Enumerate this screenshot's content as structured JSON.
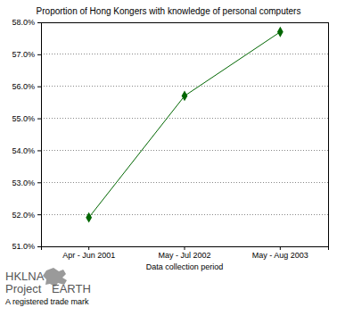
{
  "chart_data": {
    "type": "line",
    "title": "Proportion of Hong Kongers with knowledge of personal computers",
    "x_label": "Data collection period",
    "categories": [
      "Apr - Jun 2001",
      "May - Jul 2002",
      "May - Aug 2003"
    ],
    "values": [
      51.9,
      55.7,
      57.7
    ],
    "color": "#006600",
    "marker": "diamond",
    "line_style": "solid",
    "ylim": [
      51,
      58
    ],
    "yticks": [
      {
        "value": 51,
        "label": "51.0%"
      },
      {
        "value": 52,
        "label": "52.0%"
      },
      {
        "value": 53,
        "label": "53.0%"
      },
      {
        "value": 54,
        "label": "54.0%"
      },
      {
        "value": 55,
        "label": "55.0%"
      },
      {
        "value": 56,
        "label": "56.0%"
      },
      {
        "value": 57,
        "label": "57.0%"
      },
      {
        "value": 58,
        "label": "58.0%"
      }
    ],
    "grid": true,
    "annotations": [
      "HKLNA",
      "Project",
      "EARTH",
      "A registered trade mark"
    ]
  }
}
